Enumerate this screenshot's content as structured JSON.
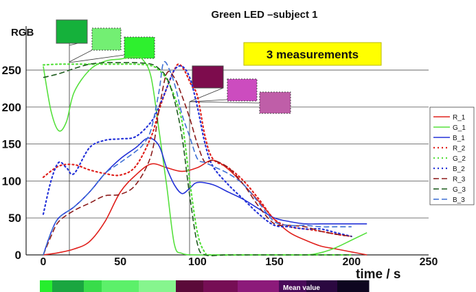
{
  "chart_data": {
    "type": "line",
    "title": "Green LED –subject 1",
    "ylabel": "RGB",
    "xlabel": "time  / s",
    "xlim": [
      0,
      250
    ],
    "ylim": [
      0,
      300
    ],
    "xticks": [
      0,
      50,
      100,
      150,
      200,
      250
    ],
    "yticks": [
      0,
      50,
      100,
      150,
      200,
      250
    ],
    "grid": "horizontal",
    "legend_position": "right",
    "annotation": "3 measurements",
    "bottom_bar_label": "Mean value",
    "series": [
      {
        "name": "R_1",
        "color": "#e0201c",
        "dash": "solid",
        "points": [
          [
            0,
            0
          ],
          [
            10,
            3
          ],
          [
            20,
            8
          ],
          [
            30,
            18
          ],
          [
            40,
            45
          ],
          [
            50,
            85
          ],
          [
            60,
            108
          ],
          [
            70,
            123
          ],
          [
            80,
            118
          ],
          [
            90,
            113
          ],
          [
            100,
            118
          ],
          [
            110,
            128
          ],
          [
            120,
            116
          ],
          [
            130,
            95
          ],
          [
            140,
            72
          ],
          [
            150,
            48
          ],
          [
            160,
            30
          ],
          [
            170,
            20
          ],
          [
            180,
            12
          ],
          [
            190,
            8
          ],
          [
            200,
            4
          ],
          [
            210,
            0
          ]
        ]
      },
      {
        "name": "G_1",
        "color": "#55e03c",
        "dash": "solid",
        "points": [
          [
            0,
            255
          ],
          [
            5,
            195
          ],
          [
            10,
            168
          ],
          [
            15,
            180
          ],
          [
            20,
            220
          ],
          [
            30,
            250
          ],
          [
            40,
            262
          ],
          [
            50,
            265
          ],
          [
            60,
            268
          ],
          [
            65,
            263
          ],
          [
            70,
            240
          ],
          [
            75,
            170
          ],
          [
            80,
            95
          ],
          [
            85,
            15
          ],
          [
            90,
            2
          ],
          [
            100,
            0
          ],
          [
            120,
            0
          ],
          [
            150,
            0
          ],
          [
            170,
            0
          ],
          [
            180,
            3
          ],
          [
            190,
            10
          ],
          [
            200,
            20
          ],
          [
            210,
            30
          ]
        ]
      },
      {
        "name": "B_1",
        "color": "#2432d8",
        "dash": "solid",
        "points": [
          [
            0,
            0
          ],
          [
            5,
            30
          ],
          [
            10,
            50
          ],
          [
            20,
            65
          ],
          [
            30,
            85
          ],
          [
            40,
            110
          ],
          [
            50,
            130
          ],
          [
            60,
            145
          ],
          [
            68,
            158
          ],
          [
            75,
            148
          ],
          [
            80,
            118
          ],
          [
            85,
            95
          ],
          [
            90,
            83
          ],
          [
            95,
            90
          ],
          [
            100,
            98
          ],
          [
            110,
            95
          ],
          [
            120,
            85
          ],
          [
            130,
            75
          ],
          [
            140,
            62
          ],
          [
            150,
            50
          ],
          [
            160,
            45
          ],
          [
            170,
            42
          ],
          [
            180,
            42
          ],
          [
            190,
            42
          ],
          [
            200,
            42
          ],
          [
            210,
            42
          ]
        ]
      },
      {
        "name": "R_2",
        "color": "#e0201c",
        "dash": "dot",
        "points": [
          [
            0,
            105
          ],
          [
            10,
            120
          ],
          [
            20,
            122
          ],
          [
            30,
            115
          ],
          [
            40,
            110
          ],
          [
            50,
            108
          ],
          [
            60,
            120
          ],
          [
            70,
            160
          ],
          [
            75,
            195
          ],
          [
            80,
            225
          ],
          [
            85,
            250
          ],
          [
            88,
            258
          ],
          [
            92,
            248
          ],
          [
            96,
            230
          ],
          [
            100,
            215
          ],
          [
            105,
            160
          ],
          [
            110,
            130
          ],
          [
            120,
            118
          ],
          [
            130,
            100
          ],
          [
            140,
            75
          ],
          [
            150,
            48
          ],
          [
            160,
            38
          ],
          [
            170,
            35
          ],
          [
            180,
            32
          ],
          [
            190,
            28
          ],
          [
            200,
            25
          ]
        ]
      },
      {
        "name": "G_2",
        "color": "#55e03c",
        "dash": "dot",
        "points": [
          [
            0,
            257
          ],
          [
            10,
            258
          ],
          [
            20,
            258
          ],
          [
            30,
            258
          ],
          [
            40,
            258
          ],
          [
            50,
            258
          ],
          [
            60,
            258
          ],
          [
            70,
            256
          ],
          [
            75,
            250
          ],
          [
            80,
            238
          ],
          [
            85,
            215
          ],
          [
            90,
            180
          ],
          [
            95,
            100
          ],
          [
            100,
            30
          ],
          [
            105,
            3
          ],
          [
            110,
            0
          ],
          [
            140,
            0
          ],
          [
            170,
            0
          ],
          [
            200,
            0
          ]
        ]
      },
      {
        "name": "B_2",
        "color": "#2432d8",
        "dash": "dot",
        "points": [
          [
            0,
            55
          ],
          [
            5,
            100
          ],
          [
            10,
            125
          ],
          [
            15,
            118
          ],
          [
            20,
            110
          ],
          [
            30,
            145
          ],
          [
            40,
            155
          ],
          [
            50,
            157
          ],
          [
            60,
            160
          ],
          [
            70,
            180
          ],
          [
            75,
            200
          ],
          [
            80,
            225
          ],
          [
            85,
            250
          ],
          [
            90,
            255
          ],
          [
            95,
            240
          ],
          [
            100,
            200
          ],
          [
            105,
            150
          ],
          [
            110,
            120
          ],
          [
            120,
            95
          ],
          [
            130,
            75
          ],
          [
            140,
            55
          ],
          [
            150,
            40
          ],
          [
            160,
            38
          ],
          [
            170,
            35
          ],
          [
            180,
            35
          ],
          [
            190,
            30
          ],
          [
            200,
            25
          ]
        ]
      },
      {
        "name": "R_3",
        "color": "#8b1a1a",
        "dash": "dash",
        "points": [
          [
            0,
            0
          ],
          [
            5,
            25
          ],
          [
            10,
            45
          ],
          [
            20,
            60
          ],
          [
            30,
            70
          ],
          [
            40,
            80
          ],
          [
            50,
            82
          ],
          [
            60,
            95
          ],
          [
            70,
            135
          ],
          [
            75,
            195
          ],
          [
            80,
            245
          ],
          [
            85,
            240
          ],
          [
            90,
            215
          ],
          [
            95,
            185
          ],
          [
            100,
            150
          ],
          [
            105,
            125
          ],
          [
            110,
            128
          ],
          [
            120,
            118
          ],
          [
            130,
            95
          ],
          [
            140,
            65
          ],
          [
            150,
            42
          ],
          [
            160,
            40
          ],
          [
            170,
            38
          ],
          [
            180,
            32
          ],
          [
            190,
            28
          ],
          [
            200,
            25
          ]
        ]
      },
      {
        "name": "G_3",
        "color": "#1c5a1c",
        "dash": "dash",
        "points": [
          [
            0,
            240
          ],
          [
            10,
            245
          ],
          [
            20,
            252
          ],
          [
            30,
            258
          ],
          [
            40,
            260
          ],
          [
            50,
            260
          ],
          [
            60,
            260
          ],
          [
            70,
            258
          ],
          [
            75,
            252
          ],
          [
            80,
            240
          ],
          [
            85,
            210
          ],
          [
            90,
            160
          ],
          [
            95,
            80
          ],
          [
            100,
            15
          ],
          [
            105,
            0
          ],
          [
            120,
            0
          ],
          [
            150,
            0
          ],
          [
            180,
            0
          ],
          [
            200,
            0
          ]
        ]
      },
      {
        "name": "B_3",
        "color": "#3d6fd4",
        "dash": "dash",
        "points": [
          [
            0,
            0
          ],
          [
            5,
            30
          ],
          [
            10,
            50
          ],
          [
            20,
            65
          ],
          [
            30,
            85
          ],
          [
            40,
            110
          ],
          [
            50,
            125
          ],
          [
            60,
            140
          ],
          [
            65,
            150
          ],
          [
            70,
            170
          ],
          [
            75,
            220
          ],
          [
            78,
            260
          ],
          [
            82,
            250
          ],
          [
            86,
            225
          ],
          [
            90,
            190
          ],
          [
            95,
            160
          ],
          [
            100,
            130
          ],
          [
            105,
            125
          ],
          [
            110,
            120
          ],
          [
            120,
            110
          ],
          [
            130,
            95
          ],
          [
            140,
            70
          ],
          [
            150,
            45
          ],
          [
            160,
            40
          ],
          [
            170,
            40
          ],
          [
            180,
            38
          ],
          [
            190,
            38
          ],
          [
            200,
            38
          ]
        ]
      }
    ],
    "swatches_green": [
      "#15b13b",
      "#73ef73",
      "#2ef02e"
    ],
    "swatches_magenta": [
      "#7d0c4d",
      "#cc4cbf",
      "#bf5ea8"
    ],
    "bottom_bar_colors": [
      "#26ee2e",
      "#1aa640",
      "#38dc4a",
      "#5cf06a",
      "#86f58e",
      "#5b0a39",
      "#760e55",
      "#8c1a7a",
      "#4a0a5a",
      "#2b0840",
      "#0e0620"
    ]
  }
}
